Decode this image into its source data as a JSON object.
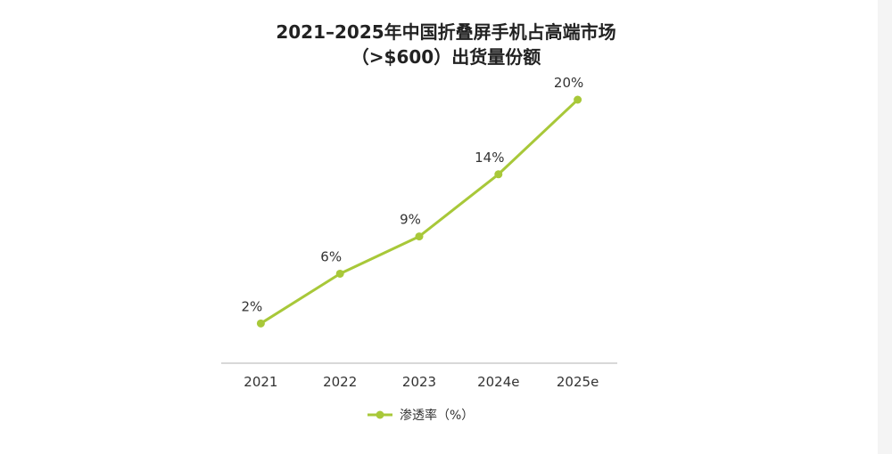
{
  "colors": {
    "series": "#a8c839",
    "axis": "#cccccc",
    "text": "#333333"
  },
  "chart_data": {
    "type": "line",
    "title": "2021–2025年中国折叠屏手机占高端市场",
    "subtitle": "（>$600）出货量份额",
    "categories": [
      "2021",
      "2022",
      "2023",
      "2024e",
      "2025e"
    ],
    "series": [
      {
        "name": "渗透率（%）",
        "values": [
          2,
          6,
          9,
          14,
          20
        ],
        "labels": [
          "2%",
          "6%",
          "9%",
          "14%",
          "20%"
        ]
      }
    ],
    "ylim": [
      -1.2,
      20
    ],
    "grid": false,
    "legend": "bottom-center"
  }
}
